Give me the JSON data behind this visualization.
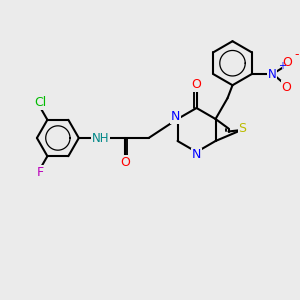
{
  "background_color": "#ebebeb",
  "atoms": {
    "Cl": {
      "color": "#00bb00"
    },
    "F": {
      "color": "#bb00bb"
    },
    "N": {
      "color": "#0000ff"
    },
    "O": {
      "color": "#ff0000"
    },
    "S": {
      "color": "#bbbb00"
    },
    "NH": {
      "color": "#008888"
    }
  },
  "bond_color": "#000000",
  "bond_width": 1.5,
  "figsize": [
    3.0,
    3.0
  ],
  "dpi": 100
}
